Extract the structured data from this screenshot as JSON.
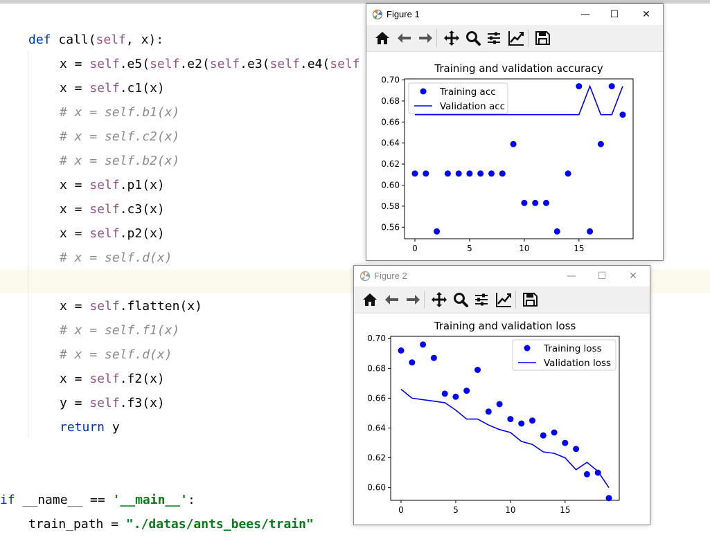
{
  "editor": {
    "lines": [
      {
        "y": 40,
        "indent": 41,
        "parts": [
          {
            "c": "kw",
            "t": "def "
          },
          {
            "c": "",
            "t": "call("
          },
          {
            "c": "slf",
            "t": "self"
          },
          {
            "c": "",
            "t": ", x):"
          }
        ]
      },
      {
        "y": 75,
        "indent": 86,
        "parts": [
          {
            "c": "",
            "t": "x = "
          },
          {
            "c": "slf",
            "t": "self"
          },
          {
            "c": "",
            "t": ".e5("
          },
          {
            "c": "slf",
            "t": "self"
          },
          {
            "c": "",
            "t": ".e2("
          },
          {
            "c": "slf",
            "t": "self"
          },
          {
            "c": "",
            "t": ".e3("
          },
          {
            "c": "slf",
            "t": "self"
          },
          {
            "c": "",
            "t": ".e4("
          },
          {
            "c": "slf",
            "t": "self"
          }
        ]
      },
      {
        "y": 110,
        "indent": 86,
        "parts": [
          {
            "c": "",
            "t": "x = "
          },
          {
            "c": "slf",
            "t": "self"
          },
          {
            "c": "",
            "t": ".c1(x)"
          }
        ]
      },
      {
        "y": 145,
        "indent": 86,
        "parts": [
          {
            "c": "cm",
            "t": "# x = self.b1(x)"
          }
        ]
      },
      {
        "y": 180,
        "indent": 86,
        "parts": [
          {
            "c": "cm",
            "t": "# x = self.c2(x)"
          }
        ]
      },
      {
        "y": 215,
        "indent": 86,
        "parts": [
          {
            "c": "cm",
            "t": "# x = self.b2(x)"
          }
        ]
      },
      {
        "y": 250,
        "indent": 86,
        "parts": [
          {
            "c": "",
            "t": "x = "
          },
          {
            "c": "slf",
            "t": "self"
          },
          {
            "c": "",
            "t": ".p1(x)"
          }
        ]
      },
      {
        "y": 285,
        "indent": 86,
        "parts": [
          {
            "c": "",
            "t": "x = "
          },
          {
            "c": "slf",
            "t": "self"
          },
          {
            "c": "",
            "t": ".c3(x)"
          }
        ]
      },
      {
        "y": 320,
        "indent": 86,
        "parts": [
          {
            "c": "",
            "t": "x = "
          },
          {
            "c": "slf",
            "t": "self"
          },
          {
            "c": "",
            "t": ".p2(x)"
          }
        ]
      },
      {
        "y": 355,
        "indent": 86,
        "parts": [
          {
            "c": "cm",
            "t": "# x = self.d(x)"
          }
        ]
      },
      {
        "y": 425,
        "indent": 86,
        "parts": [
          {
            "c": "",
            "t": "x = "
          },
          {
            "c": "slf",
            "t": "self"
          },
          {
            "c": "",
            "t": ".flatten(x)"
          }
        ]
      },
      {
        "y": 460,
        "indent": 86,
        "parts": [
          {
            "c": "cm",
            "t": "# x = self.f1(x)"
          }
        ]
      },
      {
        "y": 495,
        "indent": 86,
        "parts": [
          {
            "c": "cm",
            "t": "# x = self.d(x)"
          }
        ]
      },
      {
        "y": 530,
        "indent": 86,
        "parts": [
          {
            "c": "",
            "t": "x = "
          },
          {
            "c": "slf",
            "t": "self"
          },
          {
            "c": "",
            "t": ".f2(x)"
          }
        ]
      },
      {
        "y": 565,
        "indent": 86,
        "parts": [
          {
            "c": "",
            "t": "y = "
          },
          {
            "c": "slf",
            "t": "self"
          },
          {
            "c": "",
            "t": ".f3(x)"
          }
        ]
      },
      {
        "y": 600,
        "indent": 86,
        "parts": [
          {
            "c": "kw",
            "t": "return "
          },
          {
            "c": "",
            "t": "y"
          }
        ]
      },
      {
        "y": 705,
        "indent": 0,
        "parts": [
          {
            "c": "kw",
            "t": "if "
          },
          {
            "c": "dunder",
            "t": "__name__ == "
          },
          {
            "c": "str",
            "t": "'__main__'"
          },
          {
            "c": "",
            "t": ":"
          }
        ]
      },
      {
        "y": 740,
        "indent": 41,
        "parts": [
          {
            "c": "",
            "t": "train_path = "
          },
          {
            "c": "str",
            "t": "\"./datas/ants_bees/train\""
          }
        ]
      }
    ]
  },
  "figure1": {
    "title": "Figure 1",
    "window_controls": {
      "minimize": "—",
      "maximize": "☐",
      "close": "✕"
    },
    "toolbar": [
      "home-icon",
      "back-icon",
      "forward-icon",
      "pan-icon",
      "zoom-icon",
      "configure-subplots-icon",
      "edit-axis-icon",
      "save-icon"
    ]
  },
  "figure2": {
    "title": "Figure 2",
    "window_controls": {
      "minimize": "—",
      "maximize": "☐",
      "close": "✕"
    },
    "toolbar": [
      "home-icon",
      "back-icon",
      "forward-icon",
      "pan-icon",
      "zoom-icon",
      "configure-subplots-icon",
      "edit-axis-icon",
      "save-icon"
    ]
  },
  "chart_data": [
    {
      "type": "scatter",
      "title": "Training and validation accuracy",
      "xlabel": "",
      "ylabel": "",
      "xlim": [
        -0.95,
        19.95
      ],
      "ylim": [
        0.549,
        0.701
      ],
      "xticks": [
        0,
        5,
        10,
        15
      ],
      "yticks": [
        "0.56",
        "0.58",
        "0.60",
        "0.62",
        "0.64",
        "0.66",
        "0.68",
        "0.70"
      ],
      "legend_position": "upper-left",
      "color": "#0000ff",
      "series": [
        {
          "name": "Training acc",
          "style": "points",
          "x": [
            0,
            1,
            2,
            3,
            4,
            5,
            6,
            7,
            8,
            9,
            10,
            11,
            12,
            13,
            14,
            15,
            16,
            17,
            18,
            19
          ],
          "y": [
            0.611,
            0.611,
            0.556,
            0.611,
            0.611,
            0.611,
            0.611,
            0.611,
            0.611,
            0.639,
            0.583,
            0.583,
            0.583,
            0.556,
            0.611,
            0.694,
            0.556,
            0.639,
            0.694,
            0.667
          ]
        },
        {
          "name": "Validation acc",
          "style": "line",
          "x": [
            0,
            1,
            2,
            3,
            4,
            5,
            6,
            7,
            8,
            9,
            10,
            11,
            12,
            13,
            14,
            15,
            16,
            17,
            18,
            19
          ],
          "y": [
            0.667,
            0.667,
            0.667,
            0.667,
            0.667,
            0.667,
            0.667,
            0.667,
            0.667,
            0.667,
            0.667,
            0.667,
            0.667,
            0.667,
            0.667,
            0.667,
            0.694,
            0.667,
            0.667,
            0.694
          ]
        }
      ]
    },
    {
      "type": "scatter",
      "title": "Training and validation loss",
      "xlabel": "",
      "ylabel": "",
      "xlim": [
        -0.95,
        19.95
      ],
      "ylim": [
        0.5915,
        0.7015
      ],
      "xticks": [
        0,
        5,
        10,
        15
      ],
      "yticks": [
        "0.60",
        "0.62",
        "0.64",
        "0.66",
        "0.68",
        "0.70"
      ],
      "legend_position": "upper-right",
      "color": "#0000ff",
      "series": [
        {
          "name": "Training loss",
          "style": "points",
          "x": [
            0,
            1,
            2,
            3,
            4,
            5,
            6,
            7,
            8,
            9,
            10,
            11,
            12,
            13,
            14,
            15,
            16,
            17,
            18,
            19
          ],
          "y": [
            0.692,
            0.684,
            0.696,
            0.687,
            0.663,
            0.661,
            0.665,
            0.679,
            0.651,
            0.656,
            0.646,
            0.643,
            0.645,
            0.635,
            0.637,
            0.63,
            0.626,
            0.609,
            0.61,
            0.593
          ]
        },
        {
          "name": "Validation loss",
          "style": "line",
          "x": [
            0,
            1,
            2,
            3,
            4,
            5,
            6,
            7,
            8,
            9,
            10,
            11,
            12,
            13,
            14,
            15,
            16,
            17,
            18,
            19
          ],
          "y": [
            0.666,
            0.66,
            0.659,
            0.658,
            0.657,
            0.652,
            0.646,
            0.646,
            0.642,
            0.639,
            0.637,
            0.631,
            0.629,
            0.624,
            0.623,
            0.62,
            0.612,
            0.617,
            0.611,
            0.6
          ]
        }
      ]
    }
  ]
}
